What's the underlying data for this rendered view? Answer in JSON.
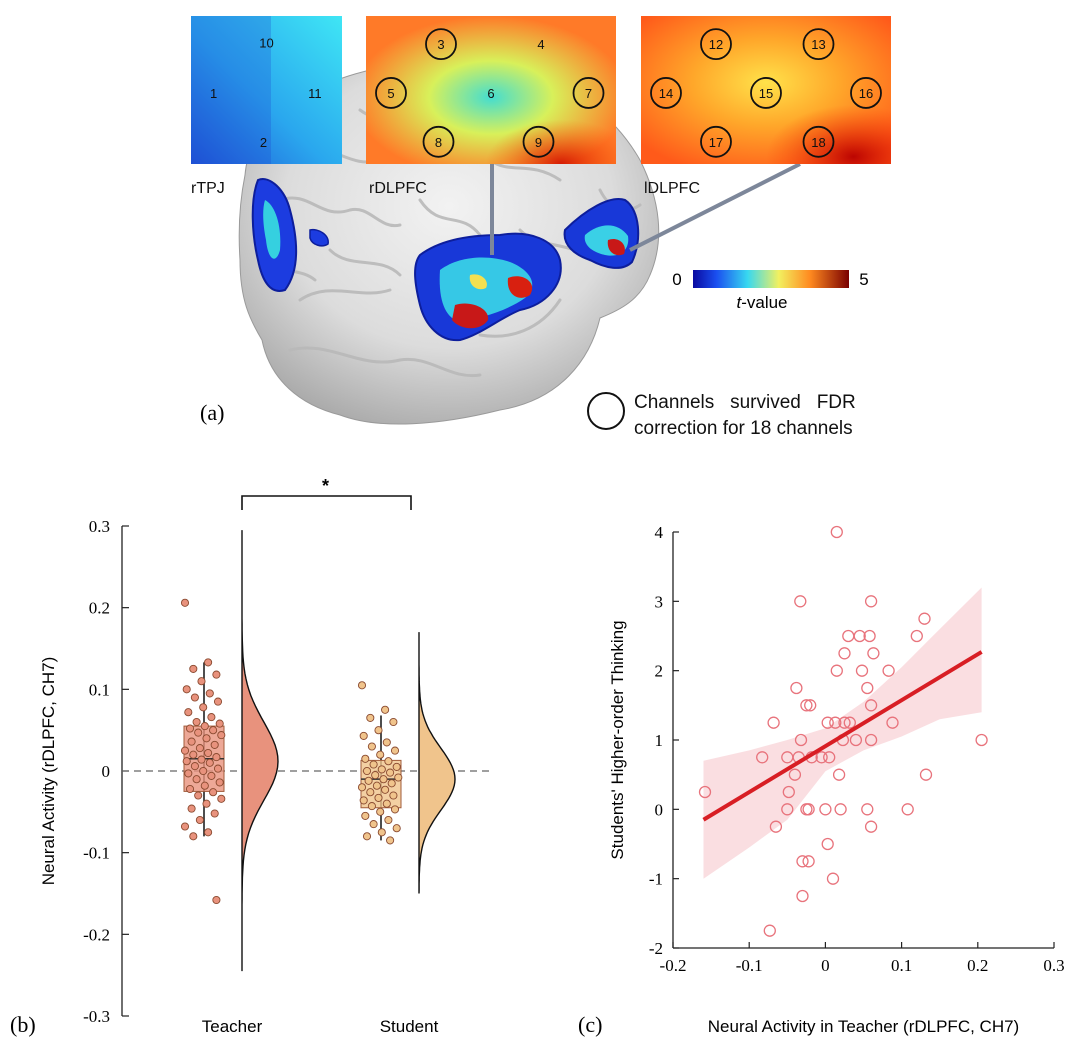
{
  "panel_labels": {
    "a": "(a)",
    "b": "(b)",
    "c": "(c)"
  },
  "brain_figure": {
    "regions": [
      {
        "name": "rTPJ",
        "channels": [
          "10",
          "1",
          "11",
          "2"
        ],
        "highlighted": []
      },
      {
        "name": "rDLPFC",
        "channels": [
          "3",
          "4",
          "5",
          "6",
          "7",
          "8",
          "9"
        ],
        "highlighted": [
          "3",
          "5",
          "7",
          "8",
          "9"
        ]
      },
      {
        "name": "lDLPFC",
        "channels": [
          "12",
          "13",
          "14",
          "15",
          "16",
          "17",
          "18"
        ],
        "highlighted": [
          "12",
          "13",
          "14",
          "15",
          "16",
          "17",
          "18"
        ]
      }
    ],
    "colorbar": {
      "min_label": "0",
      "max_label": "5",
      "label_italic": "t",
      "label_rest": "-value"
    },
    "legend_line1": "Channels   survived   FDR",
    "legend_line2": "correction for 18 channels"
  },
  "chart_data": [
    {
      "type": "raincloud",
      "ylabel": "Neural Activity (rDLPFC, CH7)",
      "xlabel": "",
      "ylim": [
        -0.3,
        0.3
      ],
      "yticks": [
        "0.3",
        "0.2",
        "0.1",
        "0",
        "-0.1",
        "-0.2",
        "-0.3"
      ],
      "reference_line": 0,
      "significance": "*",
      "colors": {
        "Teacher": "#e8927d",
        "Student": "#f0c48c"
      },
      "groups": [
        {
          "name": "Teacher",
          "box": {
            "q1": -0.025,
            "median": 0.015,
            "q3": 0.055,
            "whisker_low": -0.08,
            "whisker_high": 0.133
          },
          "density_range": [
            -0.245,
            0.295
          ],
          "density_mean": 0.012,
          "density_sd": 0.048,
          "points": [
            0.206,
            0.133,
            0.125,
            0.118,
            0.11,
            0.1,
            0.095,
            0.09,
            0.085,
            0.078,
            0.072,
            0.066,
            0.06,
            0.058,
            0.055,
            0.052,
            0.05,
            0.047,
            0.044,
            0.04,
            0.036,
            0.032,
            0.028,
            0.025,
            0.022,
            0.02,
            0.017,
            0.014,
            0.012,
            0.01,
            0.006,
            0.003,
            0.0,
            -0.003,
            -0.006,
            -0.01,
            -0.014,
            -0.018,
            -0.022,
            -0.026,
            -0.03,
            -0.034,
            -0.04,
            -0.046,
            -0.052,
            -0.06,
            -0.068,
            -0.075,
            -0.08,
            -0.158
          ]
        },
        {
          "name": "Student",
          "box": {
            "q1": -0.045,
            "median": -0.01,
            "q3": 0.013,
            "whisker_low": -0.085,
            "whisker_high": 0.068
          },
          "density_range": [
            -0.15,
            0.17
          ],
          "density_mean": -0.01,
          "density_sd": 0.038,
          "points": [
            0.105,
            0.075,
            0.065,
            0.06,
            0.05,
            0.043,
            0.035,
            0.03,
            0.025,
            0.02,
            0.015,
            0.012,
            0.008,
            0.005,
            0.002,
            0.0,
            -0.002,
            -0.005,
            -0.008,
            -0.01,
            -0.012,
            -0.015,
            -0.018,
            -0.02,
            -0.023,
            -0.026,
            -0.03,
            -0.033,
            -0.036,
            -0.04,
            -0.043,
            -0.047,
            -0.05,
            -0.055,
            -0.06,
            -0.065,
            -0.07,
            -0.075,
            -0.08,
            -0.085
          ]
        }
      ]
    },
    {
      "type": "scatter",
      "xlabel": "Neural Activity in Teacher (rDLPFC, CH7)",
      "ylabel": "Students' Higher-order Thinking",
      "xlim": [
        -0.2,
        0.3
      ],
      "ylim": [
        -2,
        4
      ],
      "xticks": [
        "-0.2",
        "-0.1",
        "0",
        "0.1",
        "0.2",
        "0.3"
      ],
      "yticks": [
        "4",
        "3",
        "2",
        "1",
        "0",
        "-1",
        "-2"
      ],
      "fit_line": {
        "x": [
          -0.16,
          0.205
        ],
        "y": [
          -0.15,
          2.27
        ]
      },
      "confidence_band": {
        "x": [
          -0.16,
          -0.1,
          -0.05,
          0.0,
          0.05,
          0.1,
          0.15,
          0.205
        ],
        "upper": [
          0.7,
          0.85,
          1.0,
          1.17,
          1.55,
          2.05,
          2.6,
          3.2
        ],
        "lower": [
          -1.0,
          -0.55,
          -0.15,
          0.55,
          0.85,
          1.05,
          1.3,
          1.4
        ]
      },
      "points": [
        [
          0.015,
          4.0
        ],
        [
          -0.033,
          3.0
        ],
        [
          0.06,
          3.0
        ],
        [
          0.13,
          2.75
        ],
        [
          0.03,
          2.5
        ],
        [
          0.045,
          2.5
        ],
        [
          0.058,
          2.5
        ],
        [
          0.12,
          2.5
        ],
        [
          0.025,
          2.25
        ],
        [
          0.063,
          2.25
        ],
        [
          0.015,
          2.0
        ],
        [
          0.048,
          2.0
        ],
        [
          0.083,
          2.0
        ],
        [
          -0.038,
          1.75
        ],
        [
          0.055,
          1.75
        ],
        [
          -0.025,
          1.5
        ],
        [
          -0.02,
          1.5
        ],
        [
          0.06,
          1.5
        ],
        [
          -0.068,
          1.25
        ],
        [
          0.003,
          1.25
        ],
        [
          0.013,
          1.25
        ],
        [
          0.025,
          1.25
        ],
        [
          0.032,
          1.25
        ],
        [
          0.088,
          1.25
        ],
        [
          -0.032,
          1.0
        ],
        [
          0.023,
          1.0
        ],
        [
          0.04,
          1.0
        ],
        [
          0.06,
          1.0
        ],
        [
          0.205,
          1.0
        ],
        [
          -0.083,
          0.75
        ],
        [
          -0.035,
          0.75
        ],
        [
          -0.018,
          0.75
        ],
        [
          -0.005,
          0.75
        ],
        [
          0.005,
          0.75
        ],
        [
          0.018,
          0.5
        ],
        [
          -0.05,
          0.75
        ],
        [
          -0.04,
          0.5
        ],
        [
          0.132,
          0.5
        ],
        [
          -0.158,
          0.25
        ],
        [
          -0.048,
          0.25
        ],
        [
          -0.05,
          0.0
        ],
        [
          -0.025,
          0.0
        ],
        [
          -0.022,
          0.0
        ],
        [
          0.0,
          0.0
        ],
        [
          0.02,
          0.0
        ],
        [
          0.055,
          0.0
        ],
        [
          0.108,
          0.0
        ],
        [
          -0.065,
          -0.25
        ],
        [
          0.06,
          -0.25
        ],
        [
          0.003,
          -0.5
        ],
        [
          -0.03,
          -0.75
        ],
        [
          -0.022,
          -0.75
        ],
        [
          0.01,
          -1.0
        ],
        [
          -0.03,
          -1.25
        ],
        [
          -0.073,
          -1.75
        ]
      ]
    }
  ]
}
